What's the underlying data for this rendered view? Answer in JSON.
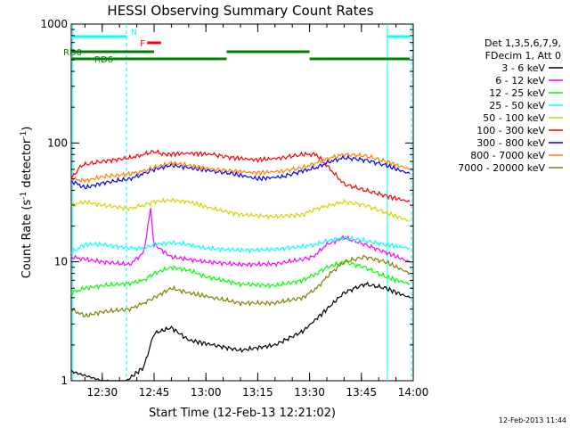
{
  "chart_data": {
    "type": "line",
    "title": "HESSI Observing Summary Count Rates",
    "xlabel": "Start Time (12-Feb-13 12:21:02)",
    "ylabel": "Count Rate (s⁻¹ detector⁻¹)",
    "ylabel_main": "Count Rate (s",
    "ylabel_sup1": "-1",
    "ylabel_mid": " detector",
    "ylabel_sup2": "-1",
    "ylabel_end": ")",
    "scale": "log",
    "ylim": [
      1,
      1000
    ],
    "xlim_minutes": [
      21.03,
      120
    ],
    "x_ticks": [
      {
        "min": 30,
        "label": "12:30"
      },
      {
        "min": 45,
        "label": "12:45"
      },
      {
        "min": 60,
        "label": "13:00"
      },
      {
        "min": 75,
        "label": "13:15"
      },
      {
        "min": 90,
        "label": "13:30"
      },
      {
        "min": 105,
        "label": "13:45"
      },
      {
        "min": 120,
        "label": "14:00"
      }
    ],
    "y_ticks": [
      {
        "v": 1,
        "label": "1"
      },
      {
        "v": 10,
        "label": "10"
      },
      {
        "v": 100,
        "label": "100"
      },
      {
        "v": 1000,
        "label": "1000"
      }
    ],
    "legend_header": [
      "Det 1,3,5,6,7,9,",
      "FDecim 1, Att 0"
    ],
    "legend_position": "right",
    "series": [
      {
        "name": "3 - 6 keV",
        "color": "#000000",
        "points": [
          [
            21,
            1.2
          ],
          [
            30,
            1.0
          ],
          [
            35,
            0.9
          ],
          [
            42,
            1.3
          ],
          [
            45,
            2.5
          ],
          [
            50,
            2.8
          ],
          [
            55,
            2.2
          ],
          [
            62,
            2.0
          ],
          [
            70,
            1.8
          ],
          [
            80,
            2.0
          ],
          [
            88,
            2.6
          ],
          [
            95,
            4.0
          ],
          [
            100,
            5.5
          ],
          [
            106,
            6.5
          ],
          [
            112,
            6.0
          ],
          [
            119,
            5.0
          ]
        ]
      },
      {
        "name": "6 - 12 keV",
        "color": "#ff00ff",
        "points": [
          [
            21,
            11
          ],
          [
            25,
            10.5
          ],
          [
            30,
            10
          ],
          [
            38,
            9.5
          ],
          [
            42,
            12
          ],
          [
            44,
            28
          ],
          [
            45,
            14
          ],
          [
            50,
            11
          ],
          [
            55,
            10.5
          ],
          [
            60,
            10
          ],
          [
            70,
            9.5
          ],
          [
            80,
            9.6
          ],
          [
            88,
            10.5
          ],
          [
            91,
            11
          ],
          [
            95,
            14
          ],
          [
            100,
            16
          ],
          [
            106,
            14
          ],
          [
            112,
            12
          ],
          [
            119,
            10
          ]
        ]
      },
      {
        "name": "12 - 25 keV",
        "color": "#00ff00",
        "points": [
          [
            21,
            5.5
          ],
          [
            25,
            6
          ],
          [
            30,
            6.3
          ],
          [
            38,
            6.6
          ],
          [
            42,
            7
          ],
          [
            45,
            8
          ],
          [
            50,
            9
          ],
          [
            55,
            8.5
          ],
          [
            60,
            7.5
          ],
          [
            70,
            6.5
          ],
          [
            80,
            6.3
          ],
          [
            88,
            7
          ],
          [
            92,
            8
          ],
          [
            95,
            9
          ],
          [
            100,
            10
          ],
          [
            106,
            9
          ],
          [
            112,
            7.5
          ],
          [
            119,
            6.5
          ]
        ]
      },
      {
        "name": "25 - 50 keV",
        "color": "#00ffff",
        "points": [
          [
            21,
            12
          ],
          [
            25,
            14
          ],
          [
            30,
            14
          ],
          [
            38,
            13
          ],
          [
            42,
            13
          ],
          [
            45,
            14
          ],
          [
            50,
            14.5
          ],
          [
            55,
            14
          ],
          [
            60,
            13
          ],
          [
            70,
            12.5
          ],
          [
            80,
            12.7
          ],
          [
            88,
            13.5
          ],
          [
            92,
            14
          ],
          [
            95,
            15
          ],
          [
            100,
            16
          ],
          [
            106,
            15
          ],
          [
            112,
            14
          ],
          [
            119,
            13
          ]
        ]
      },
      {
        "name": "50 - 100 keV",
        "color": "#d4d400",
        "points": [
          [
            21,
            30
          ],
          [
            25,
            32
          ],
          [
            30,
            30
          ],
          [
            38,
            28
          ],
          [
            42,
            30
          ],
          [
            45,
            32
          ],
          [
            50,
            33
          ],
          [
            55,
            32
          ],
          [
            62,
            28
          ],
          [
            70,
            25
          ],
          [
            80,
            24
          ],
          [
            88,
            25
          ],
          [
            92,
            28
          ],
          [
            96,
            30
          ],
          [
            100,
            32
          ],
          [
            106,
            30
          ],
          [
            112,
            26
          ],
          [
            119,
            22
          ]
        ]
      },
      {
        "name": "100 - 300 keV",
        "color": "#ff0000",
        "points": [
          [
            21,
            50
          ],
          [
            24,
            65
          ],
          [
            30,
            70
          ],
          [
            38,
            75
          ],
          [
            42,
            80
          ],
          [
            45,
            85
          ],
          [
            48,
            80
          ],
          [
            55,
            82
          ],
          [
            62,
            80
          ],
          [
            68,
            75
          ],
          [
            75,
            72
          ],
          [
            82,
            75
          ],
          [
            88,
            80
          ],
          [
            92,
            80
          ],
          [
            96,
            60
          ],
          [
            100,
            45
          ],
          [
            106,
            40
          ],
          [
            112,
            36
          ],
          [
            119,
            32
          ]
        ]
      },
      {
        "name": "300 - 800 keV",
        "color": "#0000ff",
        "points": [
          [
            21,
            48
          ],
          [
            25,
            42
          ],
          [
            30,
            46
          ],
          [
            38,
            50
          ],
          [
            42,
            55
          ],
          [
            45,
            60
          ],
          [
            50,
            65
          ],
          [
            55,
            62
          ],
          [
            62,
            58
          ],
          [
            68,
            55
          ],
          [
            75,
            50
          ],
          [
            82,
            52
          ],
          [
            88,
            58
          ],
          [
            92,
            62
          ],
          [
            96,
            70
          ],
          [
            100,
            75
          ],
          [
            106,
            72
          ],
          [
            112,
            65
          ],
          [
            119,
            55
          ]
        ]
      },
      {
        "name": "800 - 7000 keV",
        "color": "#ff8000",
        "points": [
          [
            21,
            50
          ],
          [
            25,
            48
          ],
          [
            30,
            52
          ],
          [
            38,
            55
          ],
          [
            42,
            58
          ],
          [
            45,
            62
          ],
          [
            50,
            68
          ],
          [
            55,
            65
          ],
          [
            62,
            60
          ],
          [
            68,
            58
          ],
          [
            75,
            56
          ],
          [
            82,
            58
          ],
          [
            88,
            62
          ],
          [
            92,
            68
          ],
          [
            96,
            75
          ],
          [
            100,
            80
          ],
          [
            106,
            78
          ],
          [
            112,
            70
          ],
          [
            119,
            60
          ]
        ]
      },
      {
        "name": "7000 - 20000 keV",
        "color": "#808000",
        "points": [
          [
            21,
            4
          ],
          [
            25,
            3.5
          ],
          [
            30,
            3.8
          ],
          [
            38,
            4
          ],
          [
            42,
            4.5
          ],
          [
            45,
            5
          ],
          [
            50,
            6
          ],
          [
            55,
            5.5
          ],
          [
            62,
            5
          ],
          [
            70,
            4.5
          ],
          [
            80,
            4.5
          ],
          [
            88,
            5
          ],
          [
            92,
            6
          ],
          [
            96,
            8
          ],
          [
            100,
            10
          ],
          [
            106,
            11
          ],
          [
            112,
            10
          ],
          [
            119,
            8
          ]
        ]
      }
    ],
    "flags": [
      {
        "name": "N",
        "color": "#00ffff",
        "label": "N",
        "segments": [
          [
            21,
            37
          ],
          [
            112.5,
            119
          ]
        ]
      },
      {
        "name": "F",
        "color": "#ff0000",
        "label": "F",
        "segments": [
          [
            43,
            47
          ]
        ]
      },
      {
        "name": "RD0",
        "color": "#008000",
        "label": "RD0",
        "segments": [
          [
            21,
            45
          ],
          [
            66,
            90
          ]
        ]
      },
      {
        "name": "RD6",
        "color": "#008000",
        "label": "RD6",
        "segments": [
          [
            21,
            27
          ],
          [
            27,
            45
          ],
          [
            45,
            66
          ],
          [
            90,
            119
          ]
        ]
      }
    ],
    "vlines": [
      {
        "min": 21.5,
        "color": "#00ffff"
      },
      {
        "min": 37,
        "color": "#00ffff"
      },
      {
        "min": 112.5,
        "color": "#00ffff"
      },
      {
        "min": 119.5,
        "color": "#00ffff"
      }
    ]
  },
  "timestamp": "12-Feb-2013 11:44"
}
